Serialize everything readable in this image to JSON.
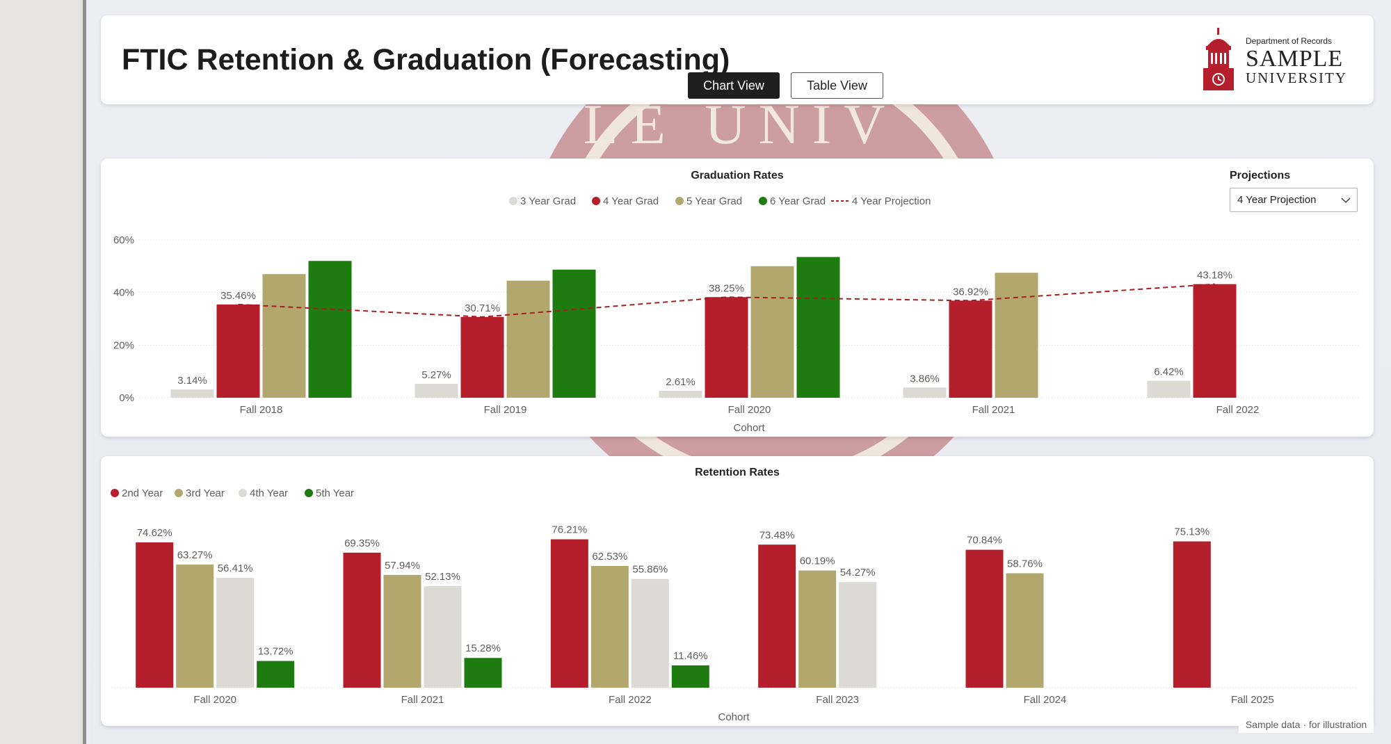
{
  "header": {
    "title": "FTIC Retention & Graduation (Forecasting)",
    "chart_view_label": "Chart View",
    "table_view_label": "Table View"
  },
  "logo": {
    "department": "Department of Records",
    "name_line1": "SAMPLE",
    "name_line2": "UNIVERSITY"
  },
  "watermark_text": "LE UNIV",
  "projections": {
    "label": "Projections",
    "selected": "4 Year Projection"
  },
  "footnote": "Sample data · for illustration",
  "colors": {
    "red": "#b41f2b",
    "gold": "#b2a86d",
    "light": "#dcdad4",
    "green": "#1e7b10",
    "projection": "#a51f22"
  },
  "chart_data": [
    {
      "type": "bar",
      "title": "Graduation Rates",
      "xlabel": "Cohort",
      "ylabel": "",
      "categories": [
        "Fall 2018",
        "Fall 2019",
        "Fall 2020",
        "Fall 2021",
        "Fall 2022"
      ],
      "ylim": [
        0,
        60
      ],
      "yticks": [
        "0%",
        "20%",
        "40%",
        "60%"
      ],
      "grid": true,
      "legend_position": "top-center",
      "series": [
        {
          "name": "3 Year Grad",
          "values": [
            3.14,
            5.27,
            2.61,
            3.86,
            6.42
          ],
          "labels": [
            "3.14%",
            "5.27%",
            "2.61%",
            "3.86%",
            "6.42%"
          ]
        },
        {
          "name": "4 Year Grad",
          "values": [
            35.46,
            30.71,
            38.25,
            36.92,
            43.18
          ],
          "labels": [
            "",
            "",
            "",
            "",
            "43.18%"
          ]
        },
        {
          "name": "5 Year Grad",
          "values": [
            47,
            44.5,
            50,
            47.5,
            null
          ],
          "labels": [
            "",
            "",
            "",
            "",
            ""
          ]
        },
        {
          "name": "6 Year Grad",
          "values": [
            52,
            48.7,
            53.5,
            null,
            null
          ],
          "labels": [
            "",
            "",
            "",
            "",
            ""
          ]
        }
      ],
      "projection": {
        "name": "4 Year Projection",
        "values": [
          35.46,
          30.71,
          38.25,
          36.92,
          43.18
        ],
        "labels": [
          "35.46%",
          "30.71%",
          "38.25%",
          "36.92%",
          ""
        ]
      }
    },
    {
      "type": "bar",
      "title": "Retention Rates",
      "xlabel": "Cohort",
      "ylabel": "",
      "categories": [
        "Fall 2020",
        "Fall 2021",
        "Fall 2022",
        "Fall 2023",
        "Fall 2024",
        "Fall 2025"
      ],
      "ylim": [
        0,
        80
      ],
      "grid": false,
      "legend_position": "top-left",
      "series": [
        {
          "name": "2nd Year",
          "values": [
            74.62,
            69.35,
            76.21,
            73.48,
            70.84,
            75.13
          ],
          "labels": [
            "74.62%",
            "69.35%",
            "76.21%",
            "73.48%",
            "70.84%",
            "75.13%"
          ]
        },
        {
          "name": "3rd Year",
          "values": [
            63.27,
            57.94,
            62.53,
            60.19,
            58.76,
            null
          ],
          "labels": [
            "63.27%",
            "57.94%",
            "62.53%",
            "60.19%",
            "58.76%",
            ""
          ]
        },
        {
          "name": "4th Year",
          "values": [
            56.41,
            52.13,
            55.86,
            54.27,
            null,
            null
          ],
          "labels": [
            "56.41%",
            "52.13%",
            "55.86%",
            "54.27%",
            "",
            ""
          ]
        },
        {
          "name": "5th Year",
          "values": [
            13.72,
            15.28,
            11.46,
            null,
            null,
            null
          ],
          "labels": [
            "13.72%",
            "15.28%",
            "11.46%",
            "",
            "",
            ""
          ]
        }
      ]
    }
  ]
}
